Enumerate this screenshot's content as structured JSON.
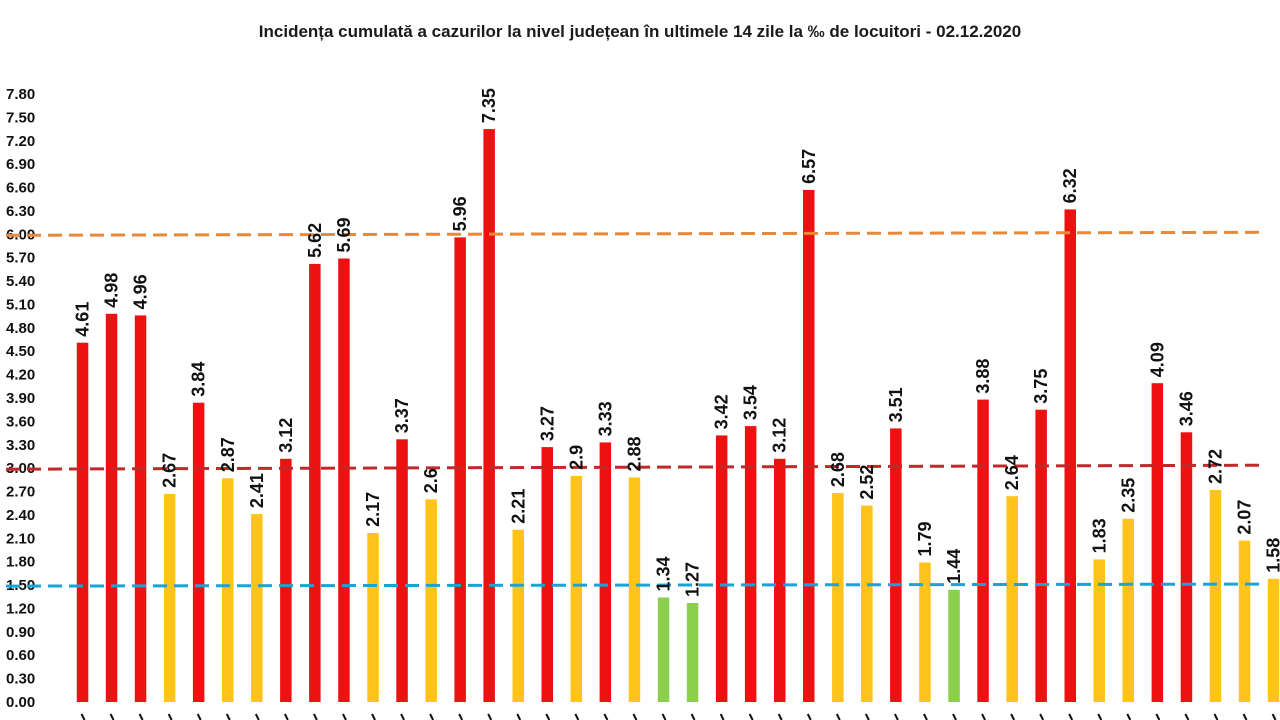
{
  "chart_data": {
    "type": "bar",
    "title": "Incidența cumulată a cazurilor la nivel județean în ultimele 14 zile la ‰ de locuitori - 02.12.2020",
    "xlabel": "",
    "ylabel": "",
    "ylim": [
      0,
      7.8
    ],
    "yticks": [
      "0.00",
      "0.30",
      "0.60",
      "0.90",
      "1.20",
      "1.50",
      "1.80",
      "2.10",
      "2.40",
      "2.70",
      "3.00",
      "3.30",
      "3.60",
      "3.90",
      "4.20",
      "4.50",
      "4.80",
      "5.10",
      "5.40",
      "5.70",
      "6.00",
      "6.30",
      "6.60",
      "6.90",
      "7.20",
      "7.50",
      "7.80"
    ],
    "values": [
      4.61,
      4.98,
      4.96,
      2.67,
      3.84,
      2.87,
      2.41,
      3.12,
      5.62,
      5.69,
      2.17,
      3.37,
      2.6,
      5.96,
      7.35,
      2.21,
      3.27,
      2.9,
      3.33,
      2.88,
      1.34,
      1.27,
      3.42,
      3.54,
      3.12,
      6.57,
      2.68,
      2.52,
      3.51,
      1.79,
      1.44,
      3.88,
      2.64,
      3.75,
      6.32,
      1.83,
      2.35,
      4.09,
      3.46,
      2.72,
      2.07,
      1.58
    ],
    "value_labels": [
      "4.61",
      "4.98",
      "4.96",
      "2.67",
      "3.84",
      "2.87",
      "2.41",
      "3.12",
      "5.62",
      "5.69",
      "2.17",
      "3.37",
      "2.6",
      "5.96",
      "7.35",
      "2.21",
      "3.27",
      "2.9",
      "3.33",
      "2.88",
      "1.34",
      "1.27",
      "3.42",
      "3.54",
      "3.12",
      "6.57",
      "2.68",
      "2.52",
      "3.51",
      "1.79",
      "1.44",
      "3.88",
      "2.64",
      "3.75",
      "6.32",
      "1.83",
      "2.35",
      "4.09",
      "3.46",
      "2.72",
      "2.07",
      "1.58"
    ],
    "bar_colors": [
      "red",
      "red",
      "red",
      "yellow",
      "red",
      "yellow",
      "yellow",
      "red",
      "red",
      "red",
      "yellow",
      "red",
      "yellow",
      "red",
      "red",
      "yellow",
      "red",
      "yellow",
      "red",
      "yellow",
      "green",
      "green",
      "red",
      "red",
      "red",
      "red",
      "yellow",
      "yellow",
      "red",
      "yellow",
      "green",
      "red",
      "yellow",
      "red",
      "red",
      "yellow",
      "yellow",
      "red",
      "red",
      "yellow",
      "yellow",
      "yellow"
    ],
    "colors": {
      "red": "#ee1111",
      "yellow": "#ffc31a",
      "green": "#8ccf4d"
    },
    "threshold_lines": [
      {
        "value": 6.0,
        "color": "#e8893a"
      },
      {
        "value": 3.0,
        "color": "#c0282a"
      },
      {
        "value": 1.5,
        "color": "#1aa3d6"
      }
    ],
    "grid": false,
    "legend": "none"
  }
}
